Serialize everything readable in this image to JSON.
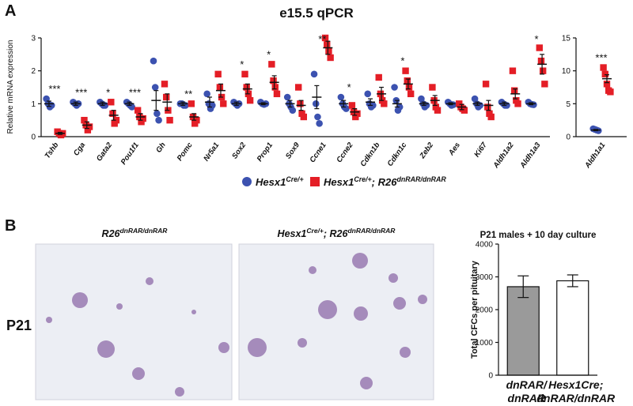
{
  "panel_labels": [
    "A",
    "B"
  ],
  "chart_data": [
    {
      "type": "dotplot",
      "title": "e15.5 qPCR",
      "y_label": "Relative mRNA expression",
      "categories": [
        "Tshb",
        "Cga",
        "Gata2",
        "Pou1f1",
        "Gh",
        "Pomc",
        "Nr5a1",
        "Sox2",
        "Prop1",
        "Sox9",
        "Ccne1",
        "Ccne2",
        "Cdkn1b",
        "Cdkn1c",
        "Zeb2",
        "Aes",
        "Ki67",
        "Aldh1a2",
        "Aldh1a3"
      ],
      "annotations": [
        "***",
        "***",
        "*",
        "***",
        null,
        "**",
        null,
        "*",
        "*",
        null,
        "**",
        "*",
        null,
        "*",
        null,
        null,
        null,
        null,
        "*"
      ],
      "ylim": [
        0,
        3
      ],
      "yticks": [
        0,
        1,
        2,
        3
      ],
      "series": [
        {
          "name_parts": [
            "Hesx1",
            "Cre/+"
          ],
          "color": "#3c52b0",
          "marker": "circle",
          "means": [
            1.0,
            1.0,
            1.0,
            1.0,
            1.1,
            1.0,
            1.05,
            1.0,
            1.0,
            1.0,
            1.2,
            1.0,
            1.05,
            1.0,
            1.0,
            1.0,
            1.0,
            1.0,
            1.0
          ],
          "errors": [
            0.08,
            0.05,
            0.05,
            0.05,
            0.3,
            0.05,
            0.15,
            0.05,
            0.03,
            0.1,
            0.35,
            0.1,
            0.1,
            0.1,
            0.05,
            0.03,
            0.05,
            0.05,
            0.03
          ],
          "points": [
            [
              1.15,
              1.0,
              0.9,
              0.95
            ],
            [
              1.05,
              1.0,
              0.95,
              1.0
            ],
            [
              1.05,
              1.0,
              0.95,
              0.95
            ],
            [
              1.05,
              1.0,
              0.95,
              0.9
            ],
            [
              2.3,
              1.5,
              0.7,
              0.5
            ],
            [
              1.0,
              1.0,
              0.95,
              0.95
            ],
            [
              1.3,
              1.0,
              0.85,
              0.95
            ],
            [
              1.05,
              1.0,
              0.95,
              1.0
            ],
            [
              1.05,
              1.0,
              0.98,
              1.0
            ],
            [
              1.2,
              1.0,
              0.9,
              0.8
            ],
            [
              1.9,
              1.0,
              0.6,
              0.4
            ],
            [
              1.2,
              1.0,
              0.9,
              0.85
            ],
            [
              1.3,
              1.0,
              0.9,
              0.95
            ],
            [
              1.5,
              1.1,
              0.8,
              0.9
            ],
            [
              1.15,
              1.0,
              0.9,
              0.95
            ],
            [
              1.05,
              1.0,
              0.95,
              0.97
            ],
            [
              1.15,
              1.0,
              0.9,
              0.95
            ],
            [
              1.05,
              1.0,
              0.95,
              0.95
            ],
            [
              1.05,
              1.0,
              0.98,
              0.97
            ]
          ]
        },
        {
          "name_parts": [
            "Hesx1",
            "Cre/+",
            "; R26",
            "dnRAR/dnRAR"
          ],
          "color": "#e41e26",
          "marker": "square",
          "means": [
            0.1,
            0.35,
            0.65,
            0.6,
            1.05,
            0.6,
            1.4,
            1.45,
            1.65,
            0.95,
            2.7,
            0.75,
            1.3,
            1.6,
            1.1,
            0.9,
            0.95,
            1.3,
            2.2
          ],
          "errors": [
            0.03,
            0.1,
            0.15,
            0.1,
            0.25,
            0.1,
            0.2,
            0.15,
            0.2,
            0.15,
            0.2,
            0.1,
            0.2,
            0.15,
            0.15,
            0.08,
            0.15,
            0.15,
            0.3
          ],
          "points": [
            [
              0.15,
              0.1,
              0.05,
              0.1
            ],
            [
              0.5,
              0.35,
              0.2,
              0.3
            ],
            [
              1.05,
              0.7,
              0.4,
              0.5
            ],
            [
              0.8,
              0.6,
              0.45,
              0.55
            ],
            [
              1.6,
              1.2,
              0.8,
              0.5
            ],
            [
              1.0,
              0.6,
              0.4,
              0.5
            ],
            [
              1.9,
              1.5,
              1.2,
              1.0
            ],
            [
              1.9,
              1.5,
              1.3,
              1.1
            ],
            [
              2.2,
              1.7,
              1.5,
              1.3
            ],
            [
              1.5,
              1.0,
              0.7,
              0.6
            ],
            [
              3.0,
              2.8,
              2.6,
              2.4
            ],
            [
              0.95,
              0.75,
              0.6,
              0.7
            ],
            [
              1.8,
              1.3,
              1.1,
              1.0
            ],
            [
              2.0,
              1.7,
              1.5,
              1.3
            ],
            [
              1.5,
              1.1,
              0.9,
              0.8
            ],
            [
              1.0,
              0.9,
              0.85,
              0.8
            ],
            [
              1.6,
              0.9,
              0.7,
              0.6
            ],
            [
              2.0,
              1.4,
              1.1,
              1.0
            ],
            [
              2.7,
              2.3,
              2.0,
              1.6
            ]
          ]
        }
      ]
    },
    {
      "type": "dotplot",
      "categories": [
        "Aldh1a1"
      ],
      "annotations": [
        "***"
      ],
      "ylim": [
        0,
        15
      ],
      "yticks": [
        0,
        5,
        10,
        15
      ],
      "series": [
        {
          "color": "#3c52b0",
          "marker": "circle",
          "means": [
            1.0
          ],
          "errors": [
            0.1
          ],
          "points": [
            [
              1.2,
              1.1,
              1.0,
              0.9
            ]
          ]
        },
        {
          "color": "#e41e26",
          "marker": "square",
          "means": [
            8.8
          ],
          "errors": [
            0.6
          ],
          "points": [
            [
              10.5,
              9.5,
              8.0,
              7.0,
              6.8
            ]
          ]
        }
      ]
    },
    {
      "type": "bar",
      "title": "P21 males + 10 day culture",
      "y_label": "Total CFCs per pituitary",
      "categories": [
        [
          "dnRAR/",
          "dnRAR"
        ],
        [
          "Hesx1Cre;",
          "dnRAR/dnRAR"
        ]
      ],
      "values": [
        2700,
        2880
      ],
      "errors": [
        330,
        180
      ],
      "colors": [
        "#9a9a9a",
        "#ffffff"
      ],
      "ylim": [
        0,
        4000
      ],
      "yticks": [
        0,
        1000,
        2000,
        3000,
        4000
      ]
    }
  ],
  "images": [
    {
      "label_parts": [
        "R26",
        "dnRAR/dnRAR"
      ]
    },
    {
      "label_parts": [
        "Hesx1",
        "Cre/+",
        "; R26",
        "dnRAR/dnRAR"
      ]
    }
  ],
  "row_label": "P21"
}
